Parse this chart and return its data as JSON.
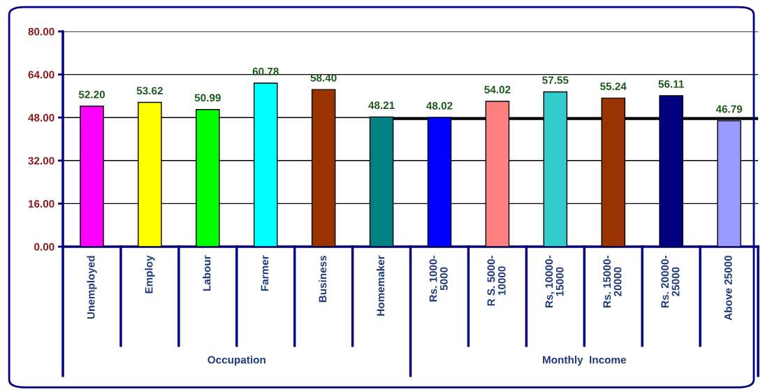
{
  "chart_data": {
    "type": "bar",
    "categories": [
      "Unemployed",
      "Employ",
      "Labour",
      "Farmer",
      "Business",
      "Homemaker",
      "Rs. 1000-\n5000",
      "R S. 5000-\n10000",
      "Rs, 10000-\n15000",
      "Rs. 15000-\n20000",
      "Rs. 20000-\n25000",
      "Above 25000"
    ],
    "values": [
      52.2,
      53.62,
      50.99,
      60.78,
      58.4,
      48.21,
      48.02,
      54.02,
      57.55,
      55.24,
      56.11,
      46.79
    ],
    "colors": [
      "#ff00ff",
      "#ffff00",
      "#00ff00",
      "#00ffff",
      "#993300",
      "#008080",
      "#0000ff",
      "#ff8080",
      "#33cccc",
      "#993300",
      "#000080",
      "#9999ff"
    ],
    "value_labels": [
      "52.20",
      "53.62",
      "50.99",
      "60.78",
      "58.40",
      "48.21",
      "48.02",
      "54.02",
      "57.55",
      "55.24",
      "56.11",
      "46.79"
    ],
    "ylim": [
      0,
      80
    ],
    "yticks": [
      {
        "value": 0,
        "label": "0.00"
      },
      {
        "value": 16,
        "label": "16.00"
      },
      {
        "value": 32,
        "label": "32.00"
      },
      {
        "value": 48,
        "label": "48.00"
      },
      {
        "value": 64,
        "label": "64.00"
      },
      {
        "value": 80,
        "label": "80.00"
      }
    ],
    "grid": "y",
    "ref_lines": [
      {
        "axis": "y",
        "value": 47.5,
        "color": "#000000"
      }
    ],
    "annotations": [
      "Occupation",
      "Monthly  Income"
    ]
  }
}
